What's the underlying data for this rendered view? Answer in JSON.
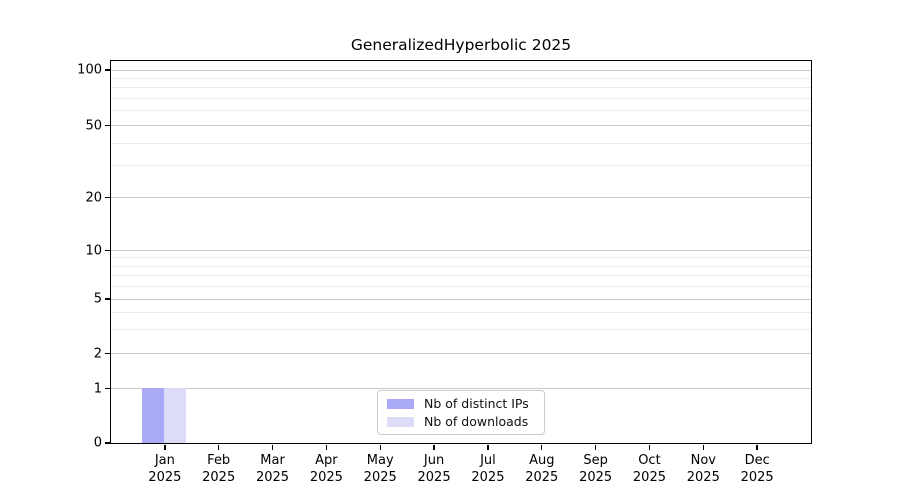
{
  "chart_data": {
    "type": "bar",
    "title": "GeneralizedHyperbolic 2025",
    "year": "2025",
    "categories": [
      "Jan",
      "Feb",
      "Mar",
      "Apr",
      "May",
      "Jun",
      "Jul",
      "Aug",
      "Sep",
      "Oct",
      "Nov",
      "Dec"
    ],
    "series": [
      {
        "name": "Nb of distinct IPs",
        "color": "#a9a9f5",
        "values": [
          1,
          0,
          0,
          0,
          0,
          0,
          0,
          0,
          0,
          0,
          0,
          0
        ]
      },
      {
        "name": "Nb of downloads",
        "color": "#dcdcf9",
        "values": [
          1,
          0,
          0,
          0,
          0,
          0,
          0,
          0,
          0,
          0,
          0,
          0
        ]
      }
    ],
    "y_axis": {
      "scale": "symlog",
      "major_ticks": [
        0,
        1,
        2,
        5,
        10,
        20,
        50,
        100
      ],
      "minor_ticks": [
        3,
        4,
        6,
        7,
        8,
        9,
        30,
        40,
        60,
        70,
        80,
        90
      ],
      "range": [
        0,
        113
      ]
    },
    "x_axis": {
      "tick_label_lines": 2
    },
    "legend": {
      "position": "lower center"
    },
    "grid": {
      "major_color": "#c9c9c9",
      "minor_color": "#ebebeb"
    },
    "background": "#ffffff"
  }
}
